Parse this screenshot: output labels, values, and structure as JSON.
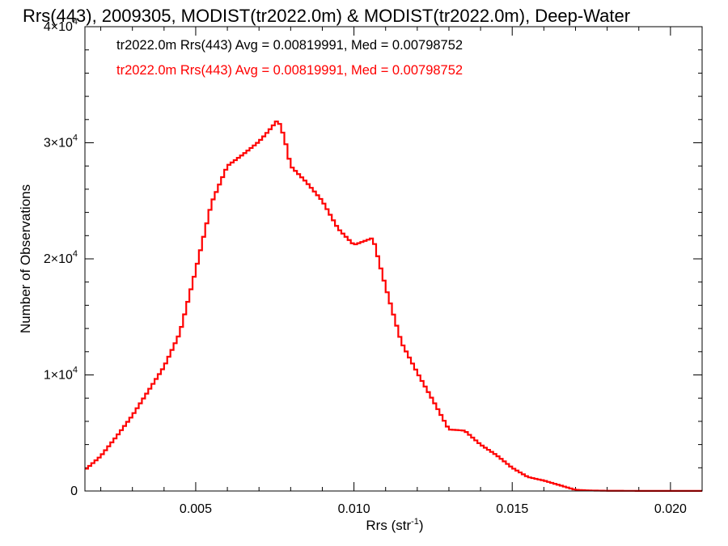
{
  "chart_data": {
    "type": "line",
    "title": "Rrs(443), 2009305, MODIST(tr2022.0m) & MODIST(tr2022.0m), Deep-Water",
    "xlabel": "Rrs (str",
    "xlabel_sup": "-1",
    "xlabel_close": ")",
    "ylabel": "Number of Observations",
    "xlim": [
      0.0015,
      0.021
    ],
    "ylim": [
      0,
      40000
    ],
    "grid": false,
    "legend_position": "top-left",
    "x_ticks": [
      {
        "value": 0.005,
        "label": "0.005"
      },
      {
        "value": 0.01,
        "label": "0.010"
      },
      {
        "value": 0.015,
        "label": "0.015"
      },
      {
        "value": 0.02,
        "label": "0.020"
      }
    ],
    "y_ticks": [
      {
        "value": 0,
        "label": "0",
        "sup": ""
      },
      {
        "value": 10000,
        "label": "1×10",
        "sup": "4"
      },
      {
        "value": 20000,
        "label": "2×10",
        "sup": "4"
      },
      {
        "value": 30000,
        "label": "3×10",
        "sup": "4"
      },
      {
        "value": 40000,
        "label": "4×10",
        "sup": "4"
      }
    ],
    "legend": [
      {
        "text": "tr2022.0m Rrs(443) Avg = 0.00819991, Med = 0.00798752",
        "color": "#000000"
      },
      {
        "text": "tr2022.0m Rrs(443) Avg = 0.00819991, Med = 0.00798752",
        "color": "#ff0000"
      }
    ],
    "series": [
      {
        "color": "#ff0000",
        "x": [
          0.0015,
          0.002,
          0.0025,
          0.003,
          0.0035,
          0.004,
          0.0045,
          0.005,
          0.0055,
          0.006,
          0.0065,
          0.007,
          0.0073,
          0.0076,
          0.0078,
          0.008,
          0.0085,
          0.009,
          0.0095,
          0.01,
          0.0103,
          0.0106,
          0.011,
          0.0115,
          0.012,
          0.0125,
          0.013,
          0.0135,
          0.014,
          0.0145,
          0.015,
          0.0155,
          0.016,
          0.0165,
          0.017,
          0.0175,
          0.018,
          0.019,
          0.02,
          0.021
        ],
        "y": [
          1800,
          3000,
          4700,
          6500,
          8600,
          10700,
          13600,
          19000,
          24800,
          28000,
          29000,
          30100,
          31000,
          32000,
          30500,
          28000,
          26600,
          25000,
          22600,
          21200,
          21500,
          21800,
          17600,
          12800,
          10200,
          7800,
          5300,
          5200,
          4000,
          3100,
          2000,
          1200,
          900,
          500,
          100,
          40,
          20,
          10,
          10,
          10
        ]
      }
    ]
  }
}
